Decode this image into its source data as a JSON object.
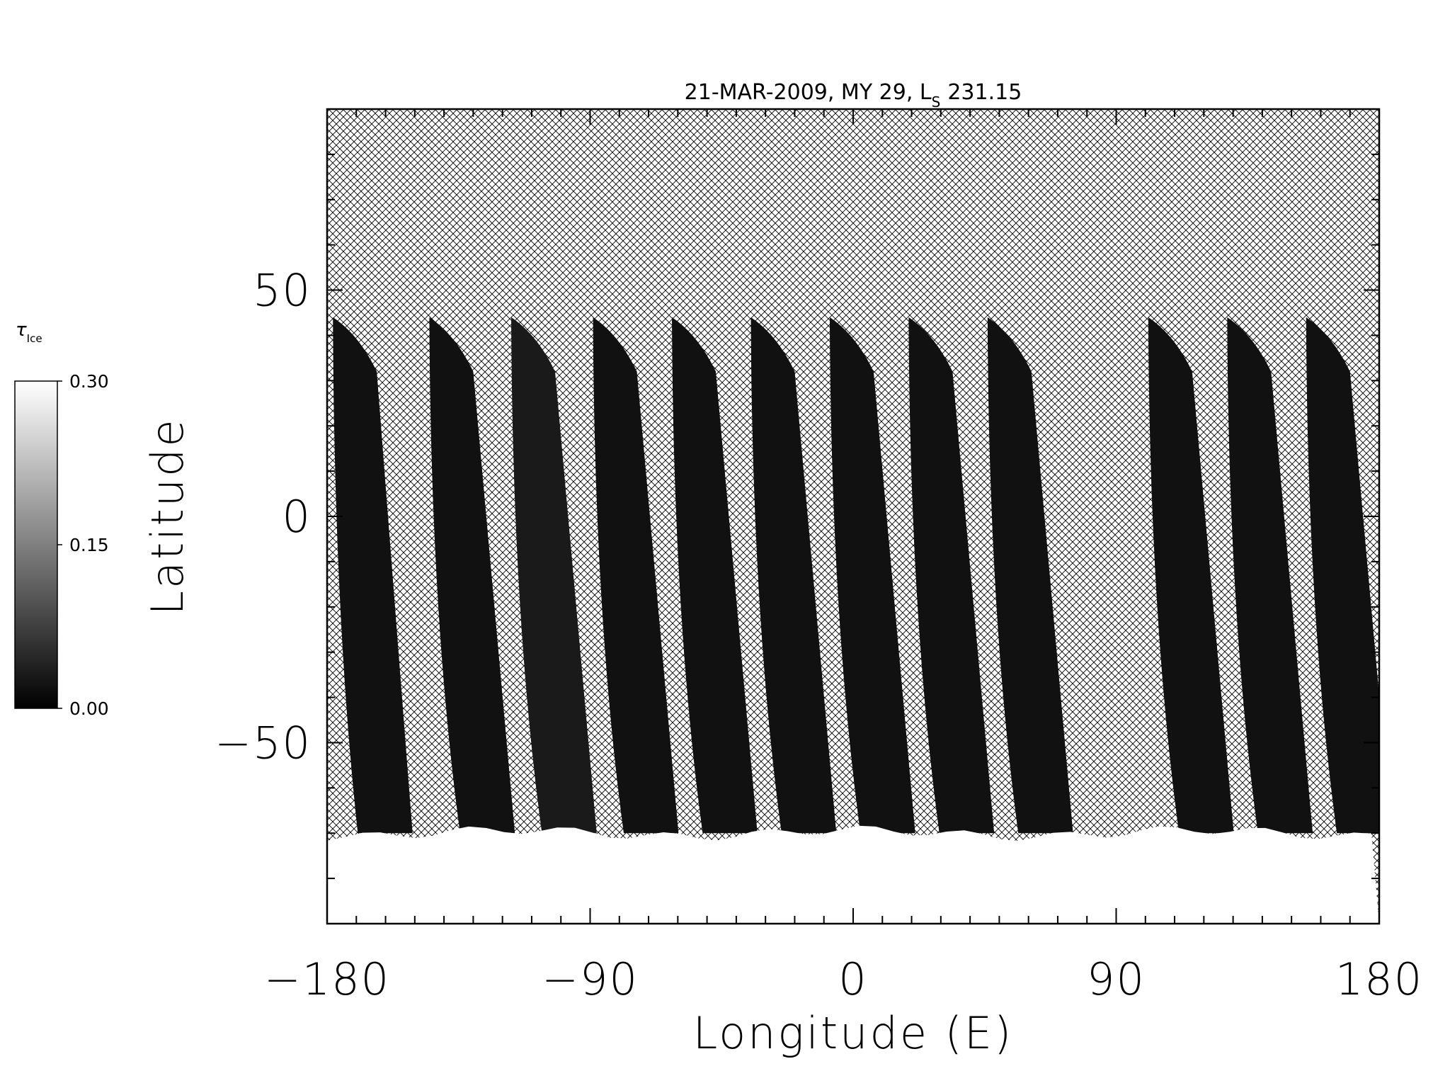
{
  "chart_data": {
    "type": "heatmap",
    "title": "21-MAR-2009, MY 29,  L",
    "title_subscript": "S",
    "title_value": "231.15",
    "xlabel": "Longitude (E)",
    "ylabel": "Latitude",
    "xlim": [
      -180,
      180
    ],
    "ylim": [
      -90,
      90
    ],
    "x_ticks": [
      -180,
      -90,
      0,
      90,
      180
    ],
    "x_tick_labels": [
      "−180",
      "−90",
      "0",
      "90",
      "180"
    ],
    "y_ticks": [
      -50,
      0,
      50
    ],
    "y_tick_labels": [
      "−50",
      "0",
      "50"
    ],
    "x_minor_step": 10,
    "y_minor_step": 10,
    "missing_data_pattern": "crosshatch",
    "colorbar": {
      "label": "τ",
      "label_subscript": "Ice",
      "min": 0.0,
      "max": 0.3,
      "tick_values": [
        0.0,
        0.15,
        0.3
      ],
      "tick_labels": [
        "0.00",
        "0.15",
        "0.30"
      ],
      "colormap": "grayscale",
      "low_color": "#000000",
      "high_color": "#ffffff"
    },
    "swaths": [
      {
        "lon_top": -178,
        "lon_bottom": -159,
        "lat_top": 44,
        "value": 0.02
      },
      {
        "lon_top": -145,
        "lon_bottom": -124,
        "lat_top": 44,
        "value": 0.02
      },
      {
        "lon_top": -117,
        "lon_bottom": -96,
        "lat_top": 44,
        "value": 0.03
      },
      {
        "lon_top": -89,
        "lon_bottom": -68,
        "lat_top": 44,
        "value": 0.02
      },
      {
        "lon_top": -62,
        "lon_bottom": -41,
        "lat_top": 44,
        "value": 0.02
      },
      {
        "lon_top": -35,
        "lon_bottom": -14,
        "lat_top": 44,
        "value": 0.02
      },
      {
        "lon_top": -8,
        "lon_bottom": 13,
        "lat_top": 44,
        "value": 0.02
      },
      {
        "lon_top": 19,
        "lon_bottom": 40,
        "lat_top": 44,
        "value": 0.02
      },
      {
        "lon_top": 46,
        "lon_bottom": 67,
        "lat_top": 44,
        "value": 0.02
      },
      {
        "lon_top": 101,
        "lon_bottom": 122,
        "lat_top": 44,
        "value": 0.02
      },
      {
        "lon_top": 128,
        "lon_bottom": 149,
        "lat_top": 44,
        "value": 0.02
      },
      {
        "lon_top": 155,
        "lon_bottom": 176,
        "lat_top": 44,
        "value": 0.02
      }
    ],
    "polar_cap": {
      "lat_min": -90,
      "lat_max": -70,
      "value": 0.3
    },
    "colors": {
      "background": "#ffffff",
      "hatch": "#000000",
      "swath_fill": "#111111",
      "cap_fill": "#f7f7f7"
    }
  }
}
